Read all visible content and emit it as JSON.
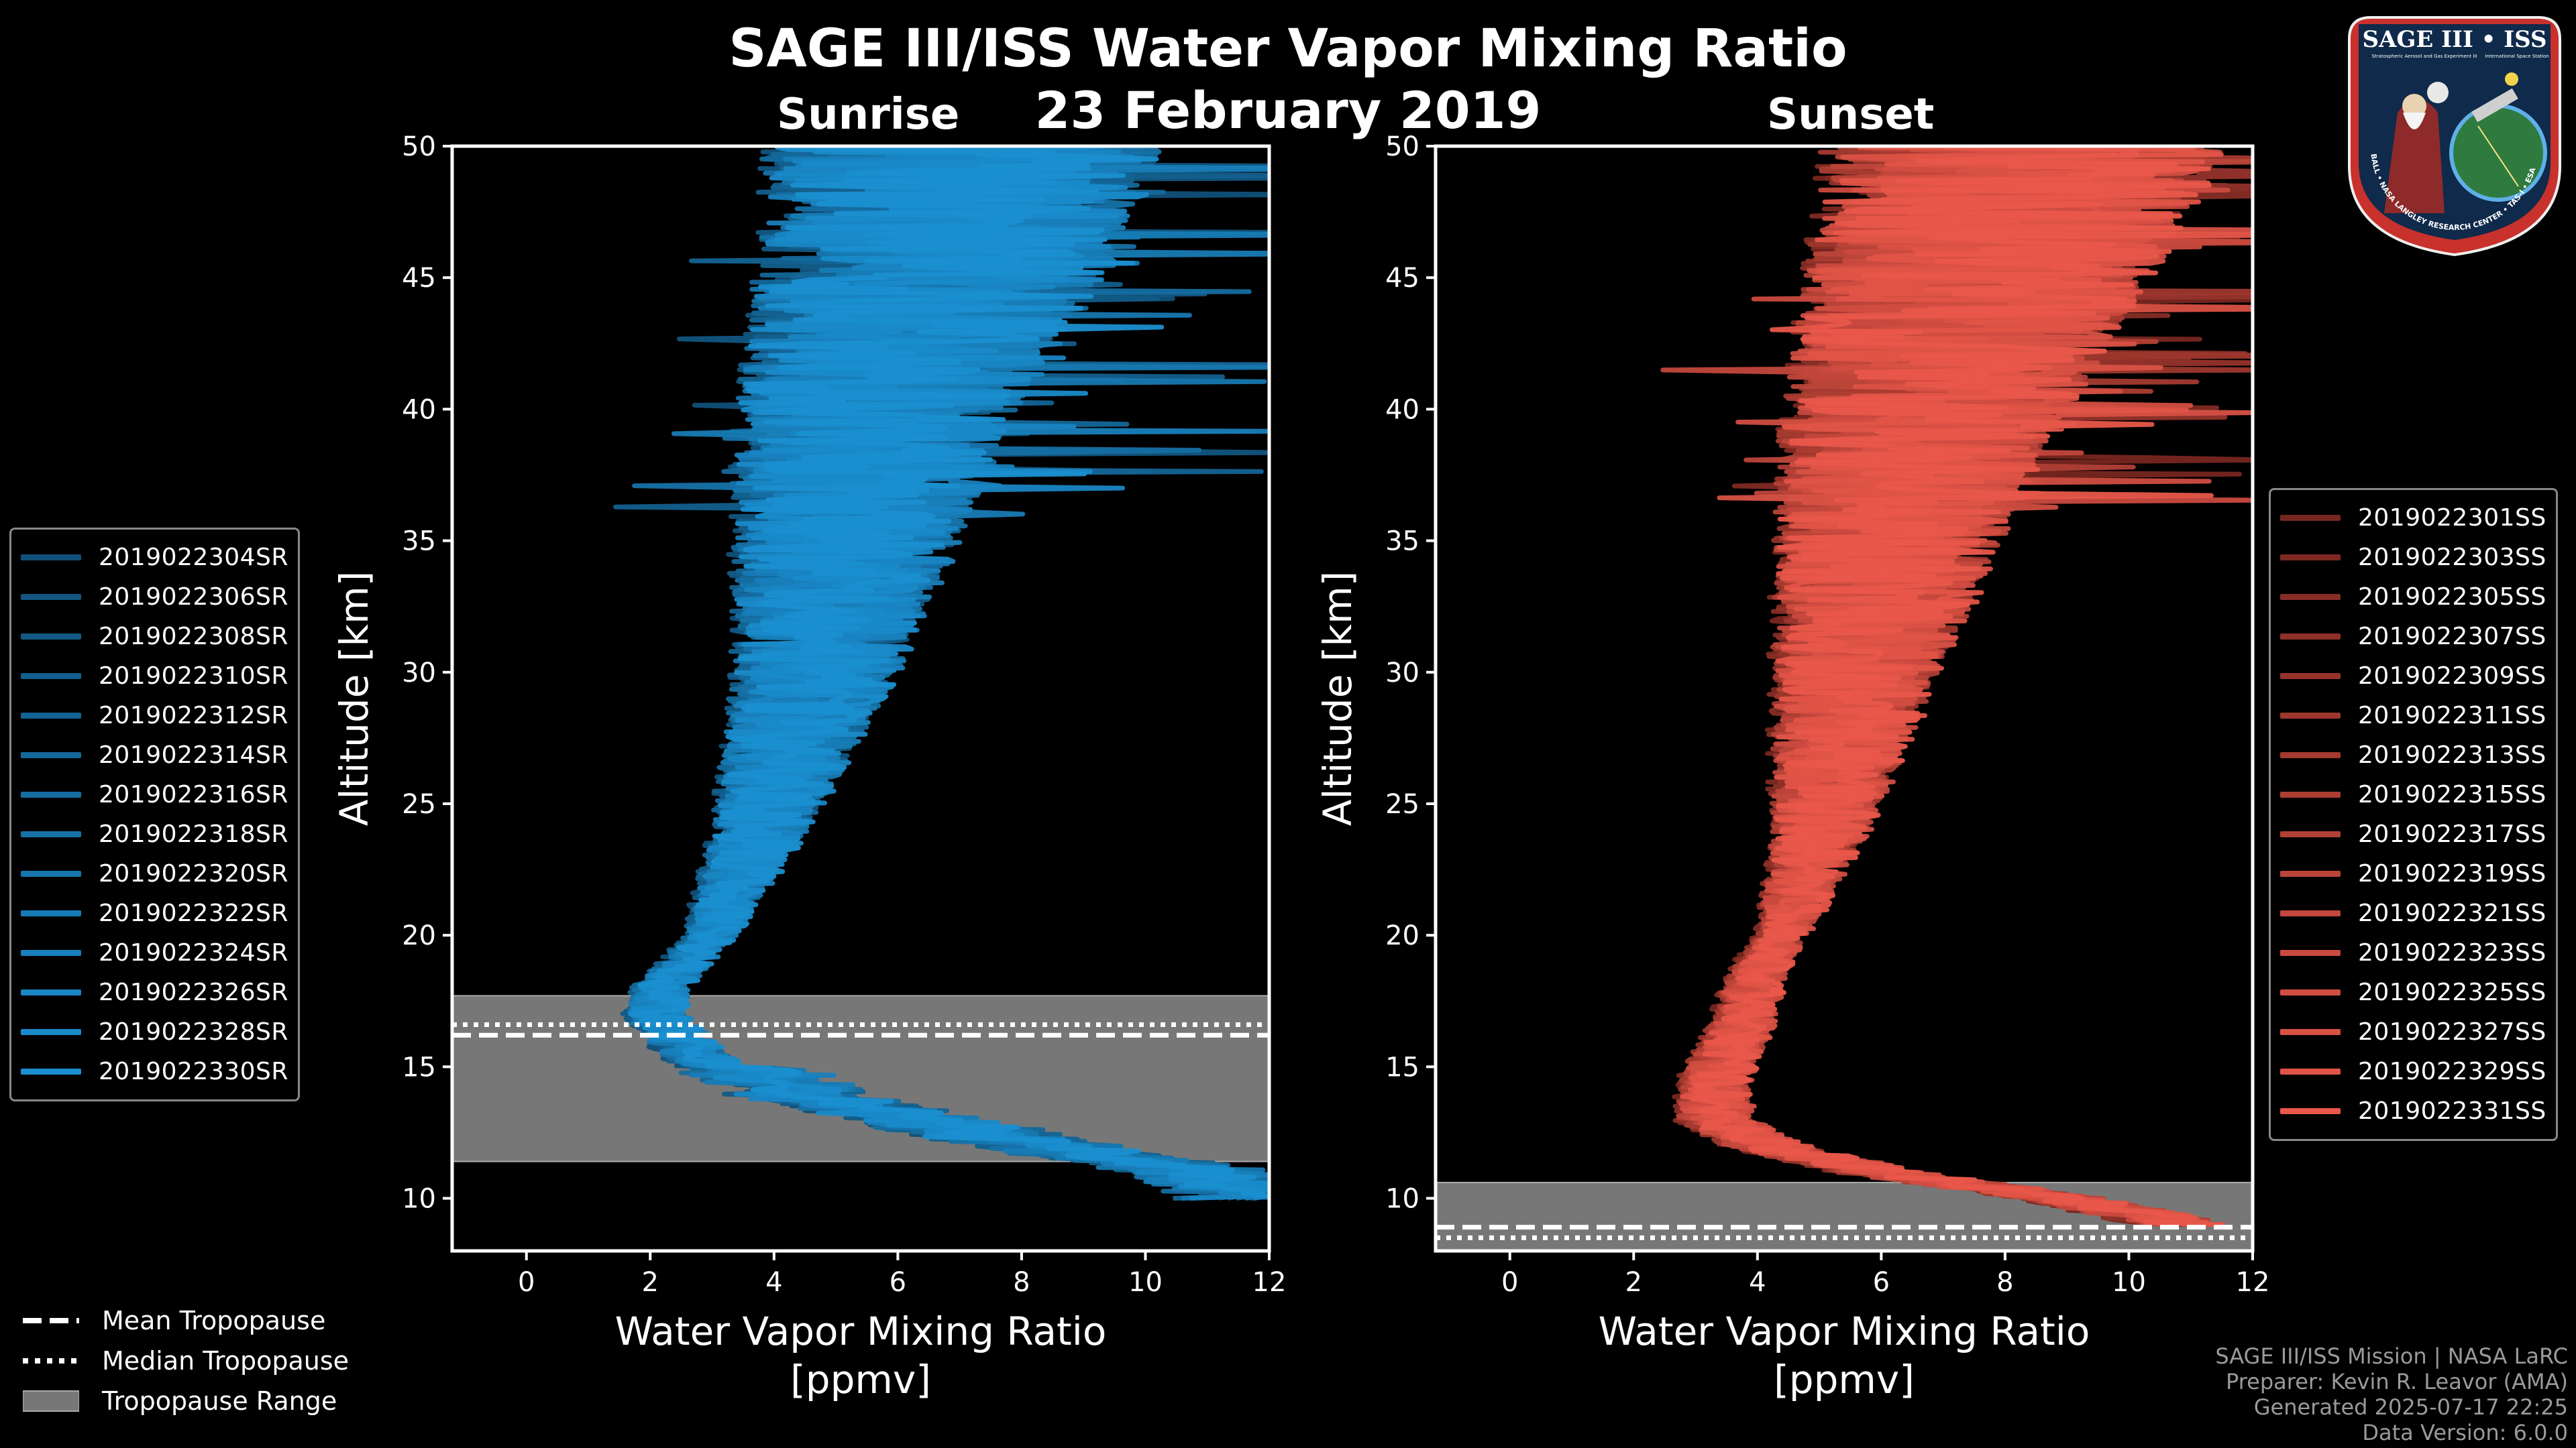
{
  "title": "SAGE III/ISS Water Vapor Mixing Ratio",
  "date": "23 February 2019",
  "colors": {
    "sunrise": "#1a8fd0",
    "sunset": "#e8574a",
    "tropopause": "#777777",
    "background": "#000000"
  },
  "chart_data": [
    {
      "type": "line",
      "title": "Sunrise",
      "xlabel": "Water Vapor Mixing Ratio",
      "xlabel_units": "[ppmv]",
      "ylabel": "Altitude [km]",
      "xlim": [
        -1.2,
        12
      ],
      "ylim": [
        8,
        50
      ],
      "xticks": [
        "0",
        "2",
        "4",
        "6",
        "8",
        "10",
        "12"
      ],
      "yticks": [
        "10",
        "15",
        "20",
        "25",
        "30",
        "35",
        "40",
        "45",
        "50"
      ],
      "series": [
        {
          "name": "2019022304SR"
        },
        {
          "name": "2019022306SR"
        },
        {
          "name": "2019022308SR"
        },
        {
          "name": "2019022310SR"
        },
        {
          "name": "2019022312SR"
        },
        {
          "name": "2019022314SR"
        },
        {
          "name": "2019022316SR"
        },
        {
          "name": "2019022318SR"
        },
        {
          "name": "2019022320SR"
        },
        {
          "name": "2019022322SR"
        },
        {
          "name": "2019022324SR"
        },
        {
          "name": "2019022326SR"
        },
        {
          "name": "2019022328SR"
        },
        {
          "name": "2019022330SR"
        }
      ],
      "mean_profile": {
        "altitude": [
          10,
          11,
          12,
          13,
          14,
          15,
          16,
          17,
          18,
          19,
          20,
          22,
          24,
          26,
          28,
          30,
          32,
          34,
          36,
          38,
          40,
          42,
          44,
          46,
          48,
          50
        ],
        "value": [
          11.5,
          10.5,
          8.0,
          6.0,
          4.0,
          3.1,
          2.6,
          2.2,
          2.3,
          2.7,
          3.1,
          3.5,
          3.9,
          4.2,
          4.5,
          4.8,
          5.0,
          5.2,
          5.4,
          5.6,
          5.8,
          6.1,
          6.4,
          6.8,
          7.0,
          7.2
        ]
      },
      "tropopause": {
        "mean_km": 16.2,
        "median_km": 16.6,
        "range_km": [
          11.4,
          17.7
        ]
      },
      "legend_position": "left"
    },
    {
      "type": "line",
      "title": "Sunset",
      "xlabel": "Water Vapor Mixing Ratio",
      "xlabel_units": "[ppmv]",
      "ylabel": "Altitude [km]",
      "xlim": [
        -1.2,
        12
      ],
      "ylim": [
        8,
        50
      ],
      "xticks": [
        "0",
        "2",
        "4",
        "6",
        "8",
        "10",
        "12"
      ],
      "yticks": [
        "10",
        "15",
        "20",
        "25",
        "30",
        "35",
        "40",
        "45",
        "50"
      ],
      "series": [
        {
          "name": "2019022301SS"
        },
        {
          "name": "2019022303SS"
        },
        {
          "name": "2019022305SS"
        },
        {
          "name": "2019022307SS"
        },
        {
          "name": "2019022309SS"
        },
        {
          "name": "2019022311SS"
        },
        {
          "name": "2019022313SS"
        },
        {
          "name": "2019022315SS"
        },
        {
          "name": "2019022317SS"
        },
        {
          "name": "2019022319SS"
        },
        {
          "name": "2019022321SS"
        },
        {
          "name": "2019022323SS"
        },
        {
          "name": "2019022325SS"
        },
        {
          "name": "2019022327SS"
        },
        {
          "name": "2019022329SS"
        },
        {
          "name": "2019022331SS"
        }
      ],
      "mean_profile": {
        "altitude": [
          9,
          10,
          11,
          12,
          13,
          14,
          15,
          16,
          17,
          18,
          19,
          20,
          22,
          24,
          26,
          28,
          30,
          32,
          34,
          36,
          38,
          40,
          42,
          44,
          46,
          48,
          50
        ],
        "value": [
          11.0,
          9.0,
          6.0,
          4.2,
          3.4,
          3.4,
          3.5,
          3.7,
          3.9,
          4.0,
          4.2,
          4.5,
          4.8,
          5.1,
          5.3,
          5.5,
          5.7,
          5.9,
          6.1,
          6.3,
          6.5,
          6.8,
          7.1,
          7.5,
          7.8,
          8.1,
          8.4
        ]
      },
      "tropopause": {
        "mean_km": 8.9,
        "median_km": 8.5,
        "range_km": [
          8,
          10.6
        ]
      },
      "legend_position": "right"
    }
  ],
  "trop_legend": {
    "mean": "Mean Tropopause",
    "median": "Median Tropopause",
    "range": "Tropopause Range"
  },
  "footer": {
    "line1": "SAGE III/ISS Mission | NASA LaRC",
    "line2": "Preparer: Kevin R. Leavor (AMA)",
    "line3": "Generated 2025-07-17 22:25",
    "line4": "Data Version: 6.0.0"
  },
  "logo": {
    "title": "SAGE III • ISS",
    "subtitle1": "Stratospheric Aerosol and Gas Experiment III",
    "subtitle2": "International Space Station",
    "ring": "BALL • NASA LANGLEY RESEARCH CENTER • TAS-I • ESA"
  }
}
